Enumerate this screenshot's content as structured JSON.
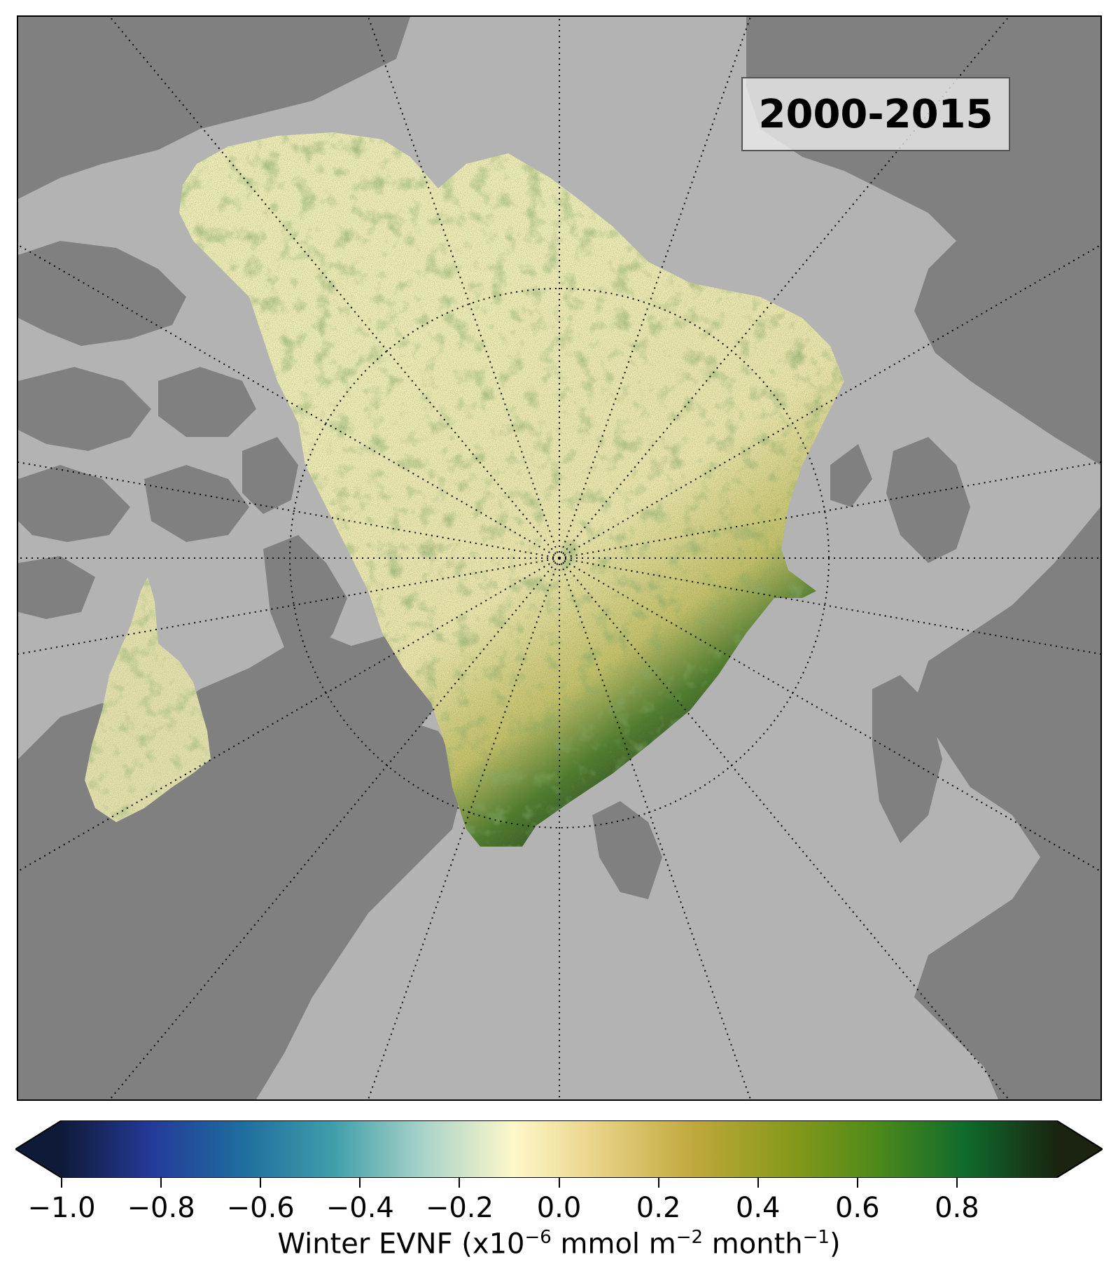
{
  "map": {
    "period_label": "2000-2015",
    "colors": {
      "ocean": "#b3b3b3",
      "land": "#808080",
      "gridline": "#000000",
      "low_anomaly": "#f6f1bd",
      "high_anomaly": "#1f3b1c"
    }
  },
  "colorbar": {
    "vmin": -1.0,
    "vmax": 1.0,
    "extend": "both",
    "tick_labels": [
      "−1.0",
      "−0.8",
      "−0.6",
      "−0.4",
      "−0.2",
      "0.0",
      "0.2",
      "0.4",
      "0.6",
      "0.8"
    ],
    "tick_values": [
      -1.0,
      -0.8,
      -0.6,
      -0.4,
      -0.2,
      0.0,
      0.2,
      0.4,
      0.6,
      0.8
    ],
    "colormap_stops": [
      "#0f1a38",
      "#243a99",
      "#1f6d9e",
      "#3f9eaa",
      "#a9d3c9",
      "#fdf8c9",
      "#e6cf82",
      "#bfa83a",
      "#8a9a1b",
      "#4f8a1a",
      "#0f6a2c",
      "#1a2410"
    ],
    "label_main": "Winter EVNF (x10",
    "label_exp1": "−6",
    "label_mid": " mmol m",
    "label_exp2": "−2",
    "label_unit": " month",
    "label_exp3": "−1",
    "label_end": ")"
  }
}
